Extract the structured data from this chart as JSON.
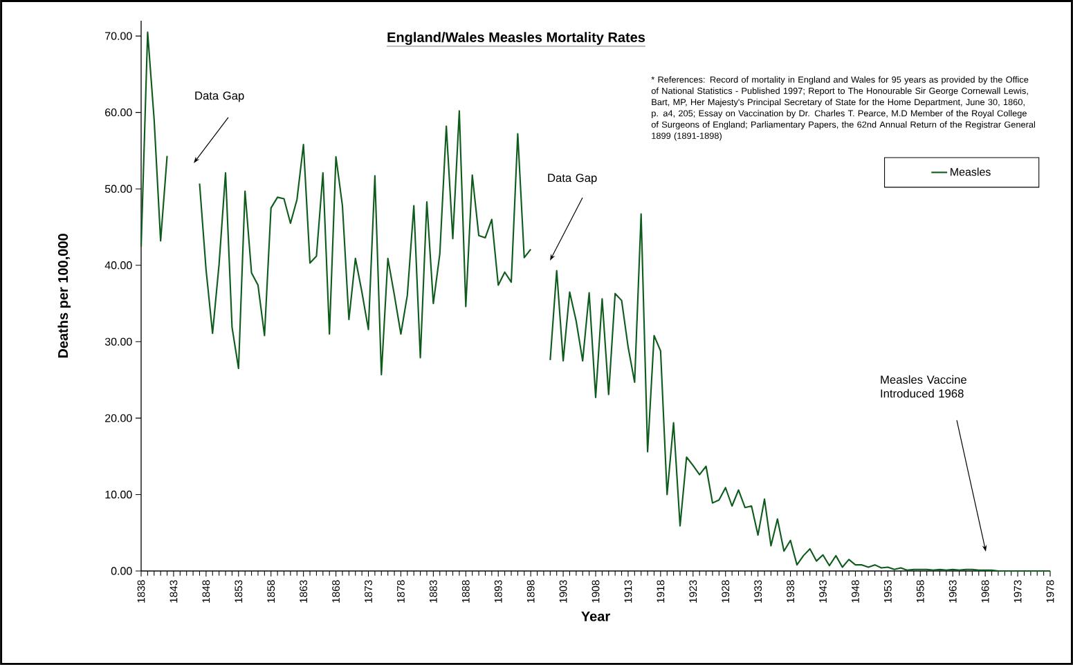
{
  "chart_data": {
    "type": "line",
    "title": "England/Wales Measles Mortality Rates",
    "xlabel": "Year",
    "ylabel": "Deaths per 100,000",
    "x": [
      1838,
      1839,
      1840,
      1841,
      1842,
      1843,
      1844,
      1845,
      1846,
      1847,
      1848,
      1849,
      1850,
      1851,
      1852,
      1853,
      1854,
      1855,
      1856,
      1857,
      1858,
      1859,
      1860,
      1861,
      1862,
      1863,
      1864,
      1865,
      1866,
      1867,
      1868,
      1869,
      1870,
      1871,
      1872,
      1873,
      1874,
      1875,
      1876,
      1877,
      1878,
      1879,
      1880,
      1881,
      1882,
      1883,
      1884,
      1885,
      1886,
      1887,
      1888,
      1889,
      1890,
      1891,
      1892,
      1893,
      1894,
      1895,
      1896,
      1897,
      1898,
      1899,
      1900,
      1901,
      1902,
      1903,
      1904,
      1905,
      1906,
      1907,
      1908,
      1909,
      1910,
      1911,
      1912,
      1913,
      1914,
      1915,
      1916,
      1917,
      1918,
      1919,
      1920,
      1921,
      1922,
      1923,
      1924,
      1925,
      1926,
      1927,
      1928,
      1929,
      1930,
      1931,
      1932,
      1933,
      1934,
      1935,
      1936,
      1937,
      1938,
      1939,
      1940,
      1941,
      1942,
      1943,
      1944,
      1945,
      1946,
      1947,
      1948,
      1949,
      1950,
      1951,
      1952,
      1953,
      1954,
      1955,
      1956,
      1957,
      1958,
      1959,
      1960,
      1961,
      1962,
      1963,
      1964,
      1965,
      1966,
      1967,
      1968,
      1969,
      1970,
      1971,
      1972,
      1973,
      1974,
      1975,
      1976,
      1977,
      1978
    ],
    "series": [
      {
        "name": "Measles",
        "color": "#0e5c1c",
        "values": [
          42.4,
          70.5,
          59.1,
          43.2,
          54.3,
          null,
          null,
          null,
          null,
          50.7,
          39.4,
          31.1,
          40.1,
          52.1,
          31.9,
          26.5,
          49.7,
          39.0,
          37.4,
          30.8,
          47.5,
          48.9,
          48.7,
          45.5,
          48.6,
          55.8,
          40.3,
          41.2,
          52.1,
          31.0,
          54.2,
          47.8,
          32.9,
          40.9,
          36.5,
          31.6,
          51.7,
          25.7,
          40.9,
          36.1,
          31.0,
          36.1,
          47.8,
          27.9,
          48.3,
          35.0,
          41.5,
          58.2,
          43.5,
          60.2,
          34.6,
          51.8,
          43.9,
          43.6,
          46.0,
          37.4,
          39.1,
          37.8,
          57.2,
          41.0,
          42.1,
          null,
          null,
          27.6,
          39.3,
          27.5,
          36.5,
          32.7,
          27.5,
          36.4,
          22.7,
          35.6,
          23.1,
          36.3,
          35.4,
          29.3,
          24.7,
          46.7,
          15.6,
          30.8,
          28.8,
          10.0,
          19.4,
          5.9,
          14.9,
          13.8,
          12.6,
          13.7,
          8.9,
          9.3,
          10.9,
          8.5,
          10.6,
          8.3,
          8.5,
          4.7,
          9.4,
          3.3,
          6.8,
          2.6,
          4.0,
          0.8,
          2.0,
          2.9,
          1.3,
          2.1,
          0.7,
          2.0,
          0.5,
          1.5,
          0.8,
          0.8,
          0.5,
          0.8,
          0.4,
          0.5,
          0.2,
          0.4,
          0.1,
          0.2,
          0.2,
          0.2,
          0.1,
          0.2,
          0.1,
          0.2,
          0.1,
          0.2,
          0.2,
          0.1,
          0.1,
          0.1,
          0.0,
          0.0,
          0.0,
          0.0,
          0.0,
          0.0,
          0.0,
          0.0,
          0.0
        ]
      }
    ],
    "xlim": [
      1838,
      1978
    ],
    "ylim": [
      0,
      72
    ],
    "xticks": [
      1838,
      1843,
      1848,
      1853,
      1858,
      1863,
      1868,
      1873,
      1878,
      1883,
      1888,
      1893,
      1898,
      1903,
      1908,
      1913,
      1918,
      1923,
      1928,
      1933,
      1938,
      1943,
      1948,
      1953,
      1958,
      1963,
      1968,
      1973,
      1978
    ],
    "yticks": [
      {
        "value": 0,
        "label": "0.00"
      },
      {
        "value": 10,
        "label": "10.00"
      },
      {
        "value": 20,
        "label": "20.00"
      },
      {
        "value": 30,
        "label": "30.00"
      },
      {
        "value": 40,
        "label": "40.00"
      },
      {
        "value": 50,
        "label": "50.00"
      },
      {
        "value": 60,
        "label": "60.00"
      },
      {
        "value": 70,
        "label": "70.00"
      }
    ],
    "legend": "top right",
    "grid": false,
    "marker": "none",
    "line_style": "solid",
    "annotations": [
      "Data Gap",
      "Data Gap",
      "Measles Vaccine Introduced 1968",
      "* References: Record of mortality in England and Wales for 95 years as provided by the Office of National Statistics - Published 1997; Report to The Honourable Sir George Cornewall Lewis, Bart, MP, Her Majesty's Principal Secretary of State for the Home Department, June 30, 1860, p. a4, 205; Essay on Vaccination by Dr. Charles T. Pearce, M.D Member of the Royal College of Surgeons of England; Parliamentary Papers, the 62nd Annual Return of the Registrar General 1899 (1891-1898)"
    ]
  }
}
